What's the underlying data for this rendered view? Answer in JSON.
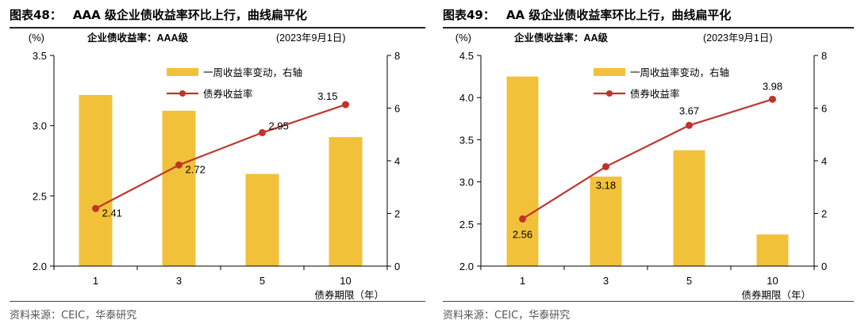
{
  "chart_data": [
    {
      "type": "bar+line",
      "figure_no": "图表48：",
      "title": "AAA 级企业债收益率环比上行，曲线扁平化",
      "subtitle": "企业债收益率：AAA级",
      "date": "(2023年9月1日)",
      "left_unit": "(%)",
      "xlabel": "债券期限（年）",
      "categories": [
        "1",
        "3",
        "5",
        "10"
      ],
      "left_axis": {
        "min": 2.0,
        "max": 3.5,
        "ticks": [
          "2.0",
          "2.5",
          "3.0",
          "3.5"
        ]
      },
      "right_axis": {
        "min": 0,
        "max": 8,
        "ticks": [
          "0",
          "2",
          "4",
          "6",
          "8"
        ]
      },
      "series": [
        {
          "name": "一周收益率变动，右轴",
          "type": "bar",
          "axis": "right",
          "color": "#F2C13A",
          "values": [
            6.5,
            5.9,
            3.5,
            4.9
          ]
        },
        {
          "name": "债券收益率",
          "type": "line",
          "axis": "left",
          "color": "#C0332B",
          "values": [
            2.41,
            2.72,
            2.95,
            3.15
          ],
          "labels": [
            "2.41",
            "2.72",
            "2.95",
            "3.15"
          ]
        }
      ],
      "source": "资料来源：CEIC，华泰研究"
    },
    {
      "type": "bar+line",
      "figure_no": "图表49：",
      "title": "AA 级企业债收益率环比上行，曲线扁平化",
      "subtitle": "企业债收益率：AA级",
      "date": "(2023年9月1日)",
      "left_unit": "(%)",
      "xlabel": "债券期限（年）",
      "categories": [
        "1",
        "3",
        "5",
        "10"
      ],
      "left_axis": {
        "min": 2.0,
        "max": 4.5,
        "ticks": [
          "2.0",
          "2.5",
          "3.0",
          "3.5",
          "4.0",
          "4.5"
        ]
      },
      "right_axis": {
        "min": 0,
        "max": 8,
        "ticks": [
          "0",
          "2",
          "4",
          "6",
          "8"
        ]
      },
      "series": [
        {
          "name": "一周收益率变动，右轴",
          "type": "bar",
          "axis": "right",
          "color": "#F2C13A",
          "values": [
            7.2,
            3.4,
            4.4,
            1.2
          ]
        },
        {
          "name": "债券收益率",
          "type": "line",
          "axis": "left",
          "color": "#C0332B",
          "values": [
            2.56,
            3.18,
            3.67,
            3.98
          ],
          "labels": [
            "2.56",
            "3.18",
            "3.67",
            "3.98"
          ]
        }
      ],
      "source": "资料来源：CEIC，华泰研究"
    }
  ]
}
